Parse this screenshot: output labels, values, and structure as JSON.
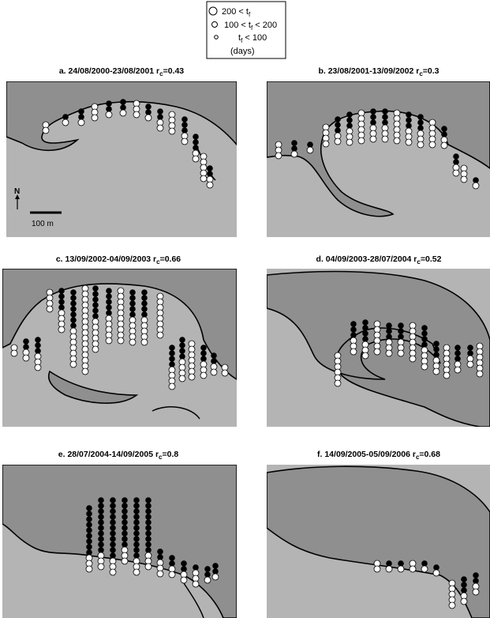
{
  "legend": {
    "entries": [
      {
        "prefix": "200 < t",
        "sub": "f",
        "suffix": ""
      },
      {
        "prefix": "100 < t",
        "sub": "f",
        "suffix": " < 200"
      },
      {
        "prefix": "t",
        "sub": "f",
        "suffix": " < 100"
      }
    ],
    "unit": "(days)"
  },
  "panels": [
    {
      "title": "a. 24/08/2000-23/08/2001 r",
      "sub": "c",
      "value": "=0.43"
    },
    {
      "title": "b. 23/08/2001-13/09/2002 r",
      "sub": "c",
      "value": "=0.3"
    },
    {
      "title": "c. 13/09/2002-04/09/2003 r",
      "sub": "c",
      "value": "=0.66"
    },
    {
      "title": "d. 04/09/2003-28/07/2004 r",
      "sub": "c",
      "value": "=0.52"
    },
    {
      "title": "e. 28/07/2004-14/09/2005 r",
      "sub": "c",
      "value": "=0.8"
    },
    {
      "title": "f. 14/09/2005-05/09/2006 r",
      "sub": "c",
      "value": "=0.68"
    }
  ],
  "north": "N",
  "scale": "100 m"
}
